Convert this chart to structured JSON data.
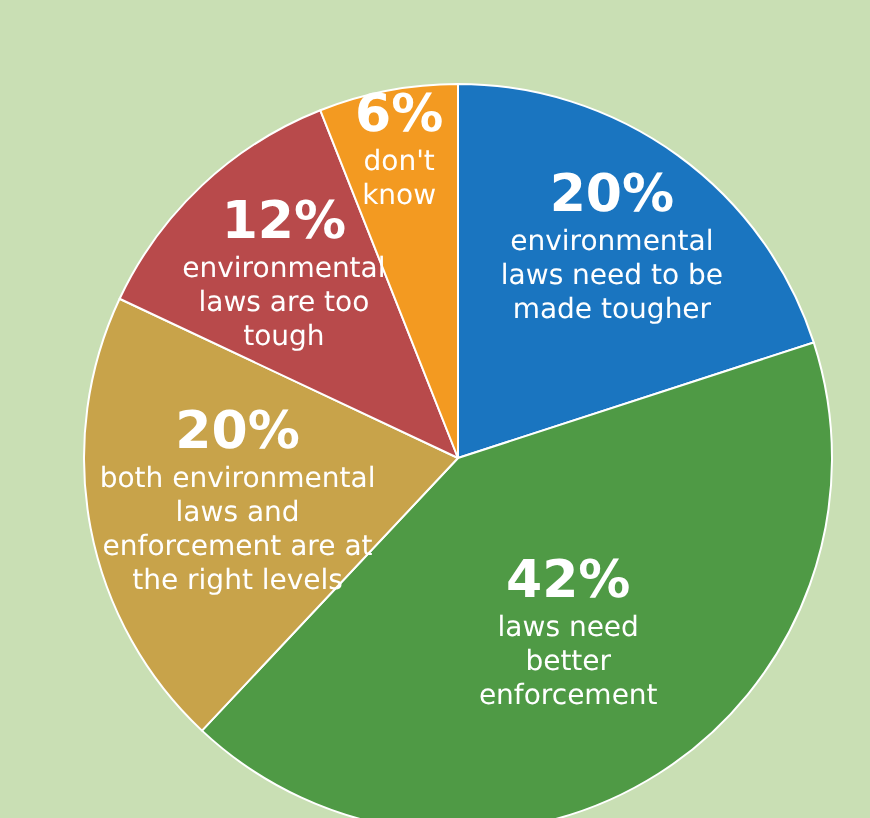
{
  "chart_data": {
    "type": "pie",
    "categories": [
      "environmental laws need to be made tougher",
      "laws need better enforcement",
      "both environmental laws and enforcement are at the right levels",
      "environmental laws are too tough",
      "don't know"
    ],
    "values": [
      20,
      42,
      20,
      12,
      6
    ],
    "value_labels": [
      "20%",
      "42%",
      "20%",
      "12%",
      "6%"
    ],
    "colors": [
      "#1a75c0",
      "#4f9a45",
      "#c8a34a",
      "#b84a4b",
      "#f39a21"
    ],
    "legend": false
  }
}
